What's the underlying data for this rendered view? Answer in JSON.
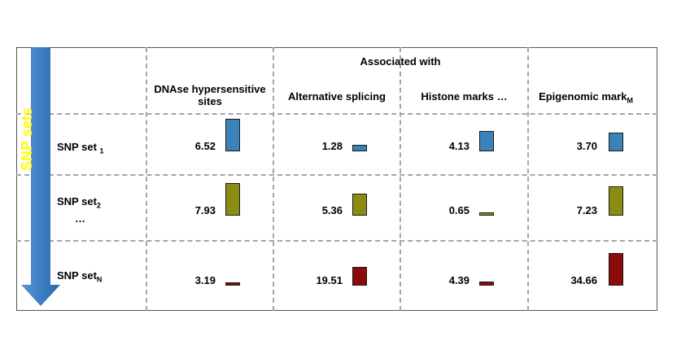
{
  "header": {
    "associated_with": "Associated with",
    "columns": [
      {
        "label": "DNAse hypersensitive sites",
        "sub": ""
      },
      {
        "label": "Alternative splicing",
        "sub": ""
      },
      {
        "label": "Histone marks  …",
        "sub": ""
      },
      {
        "label": "Epigenomic mark",
        "sub": "M"
      }
    ]
  },
  "arrow": {
    "label": "SNP sets",
    "color": "#3d7ec4",
    "text_color": "#ffff00"
  },
  "rows": [
    {
      "label": "SNP set ",
      "sub": "1",
      "extra": "",
      "color": "#3b82b8"
    },
    {
      "label": "SNP set",
      "sub": "2",
      "extra": "…",
      "color": "#8c8c14"
    },
    {
      "label": "SNP set",
      "sub": "N",
      "extra": "",
      "color": "#8b0a0a"
    }
  ],
  "chart_data": {
    "type": "bar",
    "categories": [
      "DNAse hypersensitive sites",
      "Alternative splicing",
      "Histone marks",
      "Epigenomic mark M"
    ],
    "series": [
      {
        "name": "SNP set 1",
        "values": [
          6.52,
          1.28,
          4.13,
          3.7
        ]
      },
      {
        "name": "SNP set 2",
        "values": [
          7.93,
          5.36,
          0.65,
          7.23
        ]
      },
      {
        "name": "SNP set N",
        "values": [
          3.19,
          19.51,
          4.39,
          34.66
        ]
      }
    ]
  },
  "display_values": [
    [
      "6.52",
      "1.28",
      "4.13",
      "3.70"
    ],
    [
      "7.93",
      "5.36",
      "0.65",
      "7.23"
    ],
    [
      "3.19",
      "19.51",
      "4.39",
      "34.66"
    ]
  ]
}
